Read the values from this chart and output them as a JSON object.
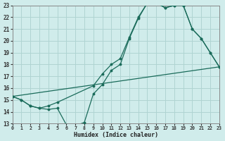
{
  "xlabel": "Humidex (Indice chaleur)",
  "bg_color": "#d0eceb",
  "grid_color": "#afd4d2",
  "line_color": "#1a6b5a",
  "xlim": [
    0,
    23
  ],
  "ylim": [
    13,
    23
  ],
  "xticks": [
    0,
    1,
    2,
    3,
    4,
    5,
    6,
    7,
    8,
    9,
    10,
    11,
    12,
    13,
    14,
    15,
    16,
    17,
    18,
    19,
    20,
    21,
    22,
    23
  ],
  "yticks": [
    13,
    14,
    15,
    16,
    17,
    18,
    19,
    20,
    21,
    22,
    23
  ],
  "line1_x": [
    0,
    1,
    2,
    3,
    4,
    5,
    6,
    7,
    8,
    9,
    10,
    11,
    12,
    13,
    14,
    15,
    16,
    17,
    18,
    19,
    20,
    21,
    22,
    23
  ],
  "line1_y": [
    15.3,
    15.0,
    14.5,
    14.3,
    14.2,
    14.3,
    12.9,
    12.8,
    13.1,
    15.5,
    16.3,
    17.5,
    18.0,
    20.2,
    21.9,
    23.2,
    23.2,
    22.8,
    23.0,
    23.0,
    21.0,
    20.2,
    19.0,
    17.8
  ],
  "line2_x": [
    0,
    1,
    2,
    3,
    4,
    5,
    9,
    10,
    11,
    12,
    13,
    14,
    15,
    16,
    17,
    18,
    19,
    20,
    21,
    22,
    23
  ],
  "line2_y": [
    15.3,
    15.0,
    14.5,
    14.3,
    14.5,
    14.8,
    16.2,
    17.2,
    18.0,
    18.5,
    20.3,
    22.0,
    23.2,
    23.2,
    22.8,
    23.0,
    23.0,
    21.0,
    20.2,
    19.0,
    17.8
  ],
  "line3_x": [
    0,
    23
  ],
  "line3_y": [
    15.3,
    17.8
  ]
}
